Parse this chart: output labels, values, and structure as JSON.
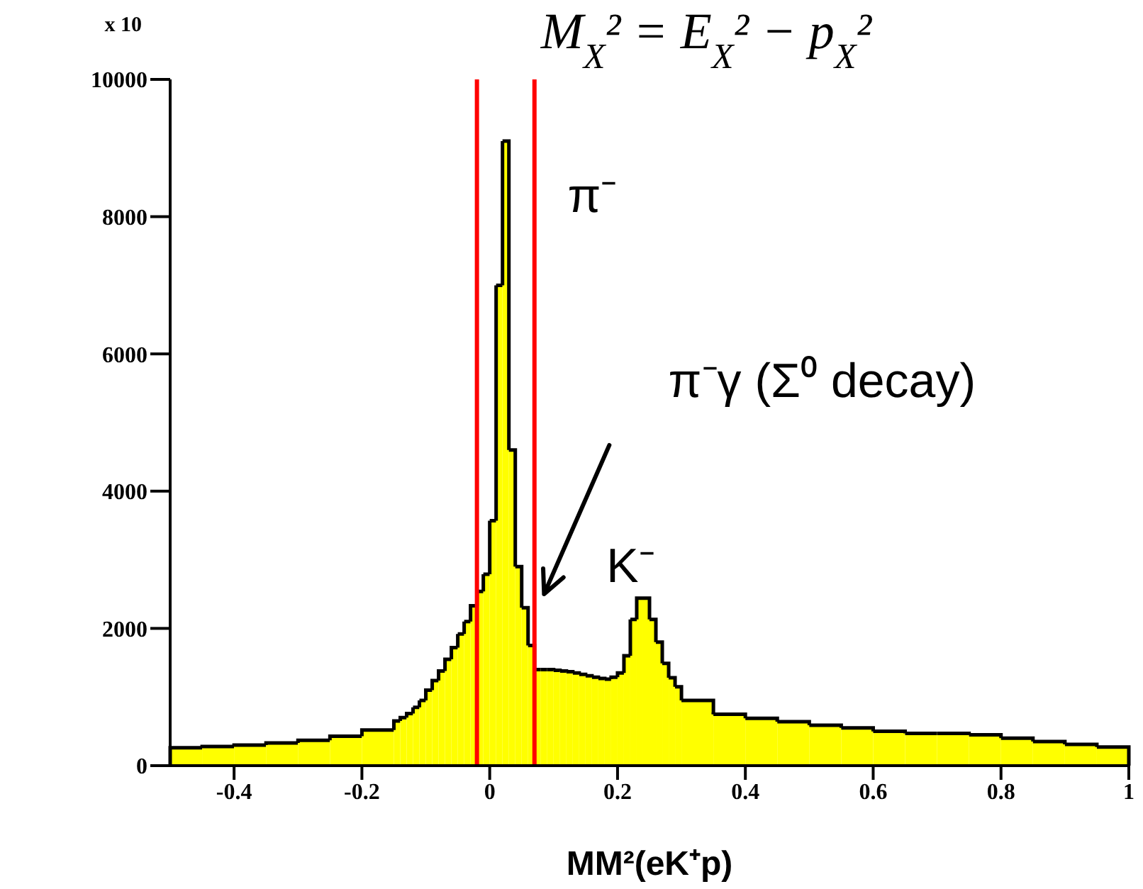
{
  "chart_data": {
    "type": "histogram",
    "title": "M$_{X}$² = E$_{X}$² − p$_{X}$²",
    "xlabel": "MM²(eK⁺p)",
    "bins": [
      -0.5,
      -0.45,
      -0.4,
      -0.35,
      -0.3,
      -0.25,
      -0.2,
      -0.15,
      -0.14,
      -0.13,
      -0.12,
      -0.11,
      -0.1,
      -0.09,
      -0.08,
      -0.07,
      -0.06,
      -0.05,
      -0.04,
      -0.03,
      -0.02,
      -0.01,
      0,
      0.01,
      0.02,
      0.03,
      0.04,
      0.05,
      0.06,
      0.07,
      0.08,
      0.09,
      0.1,
      0.11,
      0.12,
      0.13,
      0.14,
      0.15,
      0.16,
      0.17,
      0.18,
      0.19,
      0.2,
      0.21,
      0.22,
      0.23,
      0.24,
      0.25,
      0.26,
      0.27,
      0.28,
      0.29,
      0.3,
      0.35,
      0.4,
      0.45,
      0.5,
      0.55,
      0.6,
      0.65,
      0.7,
      0.75,
      0.8,
      0.85,
      0.9,
      0.95,
      1.0
    ],
    "values": [
      260,
      280,
      300,
      330,
      370,
      430,
      520,
      650,
      700,
      760,
      850,
      950,
      1100,
      1240,
      1380,
      1550,
      1720,
      1920,
      2100,
      2330,
      2540,
      2790,
      3570,
      7000,
      9100,
      4600,
      2900,
      2300,
      1750,
      1400,
      1400,
      1400,
      1390,
      1380,
      1370,
      1350,
      1330,
      1310,
      1290,
      1270,
      1260,
      1290,
      1350,
      1600,
      2130,
      2440,
      2440,
      2130,
      1800,
      1490,
      1280,
      1150,
      950,
      750,
      690,
      640,
      590,
      550,
      500,
      470,
      470,
      450,
      400,
      350,
      310,
      270
    ],
    "color": "#ffff00",
    "xlim": [
      -0.5,
      1.0
    ],
    "xticks": [
      -0.4,
      -0.2,
      0,
      0.2,
      0.4,
      0.6,
      0.8,
      1
    ],
    "ylim": [
      0,
      10000
    ],
    "yticks": [
      0,
      2000,
      4000,
      6000,
      8000,
      10000
    ],
    "ref_lines": [
      {
        "axis": "x",
        "value": -0.02,
        "color": "#ff0000"
      },
      {
        "axis": "x",
        "value": 0.07,
        "color": "#ff0000"
      }
    ],
    "annotations": [
      "x 10",
      "π⁻",
      "π⁻γ (Σ⁰ decay)",
      "K⁻"
    ]
  }
}
